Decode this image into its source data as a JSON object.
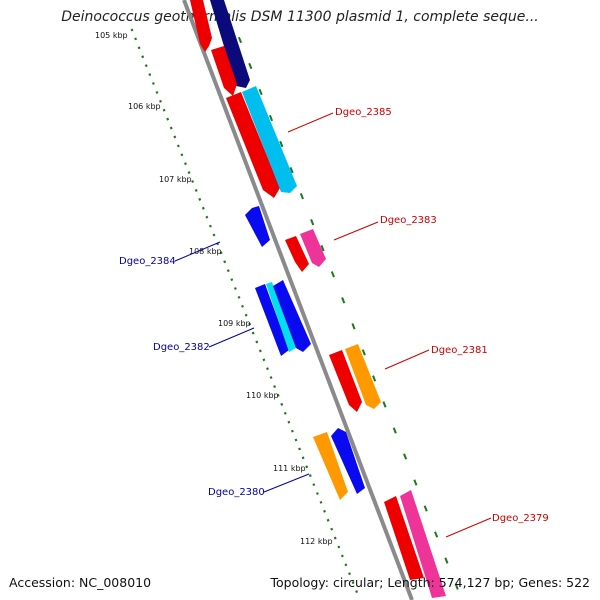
{
  "title": "Deinococcus geothermalis DSM 11300 plasmid 1, complete seque...",
  "footer": {
    "accession": "Accession: NC_008010",
    "topology": "Topology: circular; Length: 574,127 bp; Genes: 522"
  },
  "ticks": [
    "105 kbp",
    "106 kbp",
    "107 kbp",
    "108 kbp",
    "109 kbp",
    "110 kbp",
    "111 kbp",
    "112 kbp"
  ],
  "genes": [
    {
      "label": "Dgeo_2385",
      "color": "#cc0000"
    },
    {
      "label": "Dgeo_2383",
      "color": "#cc0000"
    },
    {
      "label": "Dgeo_2384",
      "color": "#0000aa"
    },
    {
      "label": "Dgeo_2382",
      "color": "#0000aa"
    },
    {
      "label": "Dgeo_2381",
      "color": "#cc0000"
    },
    {
      "label": "Dgeo_2380",
      "color": "#0000aa"
    },
    {
      "label": "Dgeo_2379",
      "color": "#cc0000"
    }
  ],
  "colors": {
    "backbone": "#8a8a8a",
    "ticks": "#1a7a1a",
    "red": "#ee0000",
    "navy": "#0a0a7a",
    "cyan": "#00bfee",
    "pink": "#ee3399",
    "blue": "#0a0af0",
    "orange": "#ff9900"
  }
}
